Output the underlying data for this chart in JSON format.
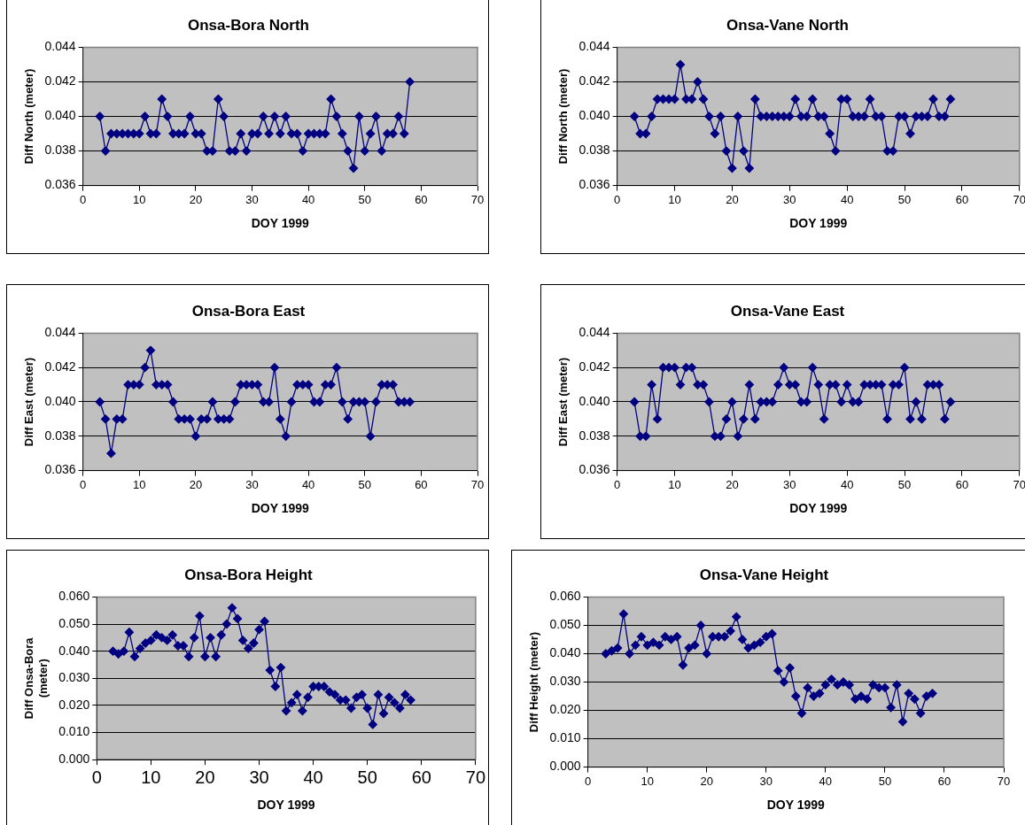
{
  "chart_data": [
    {
      "type": "line",
      "title": "Onsa-Bora North",
      "xlabel": "DOY 1999",
      "ylabel": "Diff North (meter)",
      "color": "#000080",
      "marker": "diamond",
      "grid": "y",
      "xlim": [
        0,
        70
      ],
      "xticks": [
        0,
        10,
        20,
        30,
        40,
        50,
        60,
        70
      ],
      "ylim": [
        0.036,
        0.044
      ],
      "yticks": [
        {
          "value": 0.036,
          "label": "0.036"
        },
        {
          "value": 0.038,
          "label": "0.038"
        },
        {
          "value": 0.04,
          "label": "0.040"
        },
        {
          "value": 0.042,
          "label": "0.042"
        },
        {
          "value": 0.044,
          "label": "0.044"
        }
      ],
      "x": [
        3,
        4,
        5,
        6,
        7,
        8,
        9,
        10,
        11,
        12,
        13,
        14,
        15,
        16,
        17,
        18,
        19,
        20,
        21,
        22,
        23,
        24,
        25,
        26,
        27,
        28,
        29,
        30,
        31,
        32,
        33,
        34,
        35,
        36,
        37,
        38,
        39,
        40,
        41,
        42,
        43,
        44,
        45,
        46,
        47,
        48,
        49,
        50,
        51,
        52,
        53,
        54,
        55,
        56,
        57,
        58
      ],
      "values": [
        0.04,
        0.038,
        0.039,
        0.039,
        0.039,
        0.039,
        0.039,
        0.039,
        0.04,
        0.039,
        0.039,
        0.041,
        0.04,
        0.039,
        0.039,
        0.039,
        0.04,
        0.039,
        0.039,
        0.038,
        0.038,
        0.041,
        0.04,
        0.038,
        0.038,
        0.039,
        0.038,
        0.039,
        0.039,
        0.04,
        0.039,
        0.04,
        0.039,
        0.04,
        0.039,
        0.039,
        0.038,
        0.039,
        0.039,
        0.039,
        0.039,
        0.041,
        0.04,
        0.039,
        0.038,
        0.037,
        0.04,
        0.038,
        0.039,
        0.04,
        0.038,
        0.039,
        0.039,
        0.04,
        0.039,
        0.042
      ]
    },
    {
      "type": "line",
      "title": "Onsa-Vane North",
      "xlabel": "DOY 1999",
      "ylabel": "Diff North (meter)",
      "color": "#000080",
      "marker": "diamond",
      "grid": "y",
      "xlim": [
        0,
        70
      ],
      "xticks": [
        0,
        10,
        20,
        30,
        40,
        50,
        60,
        70
      ],
      "ylim": [
        0.036,
        0.044
      ],
      "yticks": [
        {
          "value": 0.036,
          "label": "0.036"
        },
        {
          "value": 0.038,
          "label": "0.038"
        },
        {
          "value": 0.04,
          "label": "0.040"
        },
        {
          "value": 0.042,
          "label": "0.042"
        },
        {
          "value": 0.044,
          "label": "0.044"
        }
      ],
      "x": [
        3,
        4,
        5,
        6,
        7,
        8,
        9,
        10,
        11,
        12,
        13,
        14,
        15,
        16,
        17,
        18,
        19,
        20,
        21,
        22,
        23,
        24,
        25,
        26,
        27,
        28,
        29,
        30,
        31,
        32,
        33,
        34,
        35,
        36,
        37,
        38,
        39,
        40,
        41,
        42,
        43,
        44,
        45,
        46,
        47,
        48,
        49,
        50,
        51,
        52,
        53,
        54,
        55,
        56,
        57,
        58
      ],
      "values": [
        0.04,
        0.039,
        0.039,
        0.04,
        0.041,
        0.041,
        0.041,
        0.041,
        0.043,
        0.041,
        0.041,
        0.042,
        0.041,
        0.04,
        0.039,
        0.04,
        0.038,
        0.037,
        0.04,
        0.038,
        0.037,
        0.041,
        0.04,
        0.04,
        0.04,
        0.04,
        0.04,
        0.04,
        0.041,
        0.04,
        0.04,
        0.041,
        0.04,
        0.04,
        0.039,
        0.038,
        0.041,
        0.041,
        0.04,
        0.04,
        0.04,
        0.041,
        0.04,
        0.04,
        0.038,
        0.038,
        0.04,
        0.04,
        0.039,
        0.04,
        0.04,
        0.04,
        0.041,
        0.04,
        0.04,
        0.041
      ]
    },
    {
      "type": "line",
      "title": "Onsa-Bora East",
      "xlabel": "DOY 1999",
      "ylabel": "Diff East (meter)",
      "color": "#000080",
      "marker": "diamond",
      "grid": "y",
      "xlim": [
        0,
        70
      ],
      "xticks": [
        0,
        10,
        20,
        30,
        40,
        50,
        60,
        70
      ],
      "ylim": [
        0.036,
        0.044
      ],
      "yticks": [
        {
          "value": 0.036,
          "label": "0.036"
        },
        {
          "value": 0.038,
          "label": "0.038"
        },
        {
          "value": 0.04,
          "label": "0.040"
        },
        {
          "value": 0.042,
          "label": "0.042"
        },
        {
          "value": 0.044,
          "label": "0.044"
        }
      ],
      "x": [
        3,
        4,
        5,
        6,
        7,
        8,
        9,
        10,
        11,
        12,
        13,
        14,
        15,
        16,
        17,
        18,
        19,
        20,
        21,
        22,
        23,
        24,
        25,
        26,
        27,
        28,
        29,
        30,
        31,
        32,
        33,
        34,
        35,
        36,
        37,
        38,
        39,
        40,
        41,
        42,
        43,
        44,
        45,
        46,
        47,
        48,
        49,
        50,
        51,
        52,
        53,
        54,
        55,
        56,
        57,
        58
      ],
      "values": [
        0.04,
        0.039,
        0.037,
        0.039,
        0.039,
        0.041,
        0.041,
        0.041,
        0.042,
        0.043,
        0.041,
        0.041,
        0.041,
        0.04,
        0.039,
        0.039,
        0.039,
        0.038,
        0.039,
        0.039,
        0.04,
        0.039,
        0.039,
        0.039,
        0.04,
        0.041,
        0.041,
        0.041,
        0.041,
        0.04,
        0.04,
        0.042,
        0.039,
        0.038,
        0.04,
        0.041,
        0.041,
        0.041,
        0.04,
        0.04,
        0.041,
        0.041,
        0.042,
        0.04,
        0.039,
        0.04,
        0.04,
        0.04,
        0.038,
        0.04,
        0.041,
        0.041,
        0.041,
        0.04,
        0.04,
        0.04
      ]
    },
    {
      "type": "line",
      "title": "Onsa-Vane East",
      "xlabel": "DOY 1999",
      "ylabel": "Diff East (meter)",
      "color": "#000080",
      "marker": "diamond",
      "grid": "y",
      "xlim": [
        0,
        70
      ],
      "xticks": [
        0,
        10,
        20,
        30,
        40,
        50,
        60,
        70
      ],
      "ylim": [
        0.036,
        0.044
      ],
      "yticks": [
        {
          "value": 0.036,
          "label": "0.036"
        },
        {
          "value": 0.038,
          "label": "0.038"
        },
        {
          "value": 0.04,
          "label": "0.040"
        },
        {
          "value": 0.042,
          "label": "0.042"
        },
        {
          "value": 0.044,
          "label": "0.044"
        }
      ],
      "x": [
        3,
        4,
        5,
        6,
        7,
        8,
        9,
        10,
        11,
        12,
        13,
        14,
        15,
        16,
        17,
        18,
        19,
        20,
        21,
        22,
        23,
        24,
        25,
        26,
        27,
        28,
        29,
        30,
        31,
        32,
        33,
        34,
        35,
        36,
        37,
        38,
        39,
        40,
        41,
        42,
        43,
        44,
        45,
        46,
        47,
        48,
        49,
        50,
        51,
        52,
        53,
        54,
        55,
        56,
        57,
        58
      ],
      "values": [
        0.04,
        0.038,
        0.038,
        0.041,
        0.039,
        0.042,
        0.042,
        0.042,
        0.041,
        0.042,
        0.042,
        0.041,
        0.041,
        0.04,
        0.038,
        0.038,
        0.039,
        0.04,
        0.038,
        0.039,
        0.041,
        0.039,
        0.04,
        0.04,
        0.04,
        0.041,
        0.042,
        0.041,
        0.041,
        0.04,
        0.04,
        0.042,
        0.041,
        0.039,
        0.041,
        0.041,
        0.04,
        0.041,
        0.04,
        0.04,
        0.041,
        0.041,
        0.041,
        0.041,
        0.039,
        0.041,
        0.041,
        0.042,
        0.039,
        0.04,
        0.039,
        0.041,
        0.041,
        0.041,
        0.039,
        0.04
      ]
    },
    {
      "type": "line",
      "title": "Onsa-Bora Height",
      "xlabel": "DOY 1999",
      "ylabel": "Diff Onsa-Bora (meter)",
      "color": "#000080",
      "marker": "diamond",
      "grid": "y",
      "xlim": [
        0,
        70
      ],
      "xticks": [
        0,
        10,
        20,
        30,
        40,
        50,
        60,
        70
      ],
      "ylim": [
        0,
        0.06
      ],
      "yticks": [
        {
          "value": 0,
          "label": "0.000"
        },
        {
          "value": 0.01,
          "label": "0.010"
        },
        {
          "value": 0.02,
          "label": "0.020"
        },
        {
          "value": 0.03,
          "label": "0.030"
        },
        {
          "value": 0.04,
          "label": "0.040"
        },
        {
          "value": 0.05,
          "label": "0.050"
        },
        {
          "value": 0.06,
          "label": "0.060"
        }
      ],
      "x": [
        3,
        4,
        5,
        6,
        7,
        8,
        9,
        10,
        11,
        12,
        13,
        14,
        15,
        16,
        17,
        18,
        19,
        20,
        21,
        22,
        23,
        24,
        25,
        26,
        27,
        28,
        29,
        30,
        31,
        32,
        33,
        34,
        35,
        36,
        37,
        38,
        39,
        40,
        41,
        42,
        43,
        44,
        45,
        46,
        47,
        48,
        49,
        50,
        51,
        52,
        53,
        54,
        55,
        56,
        57,
        58
      ],
      "values": [
        0.04,
        0.039,
        0.04,
        0.047,
        0.038,
        0.041,
        0.043,
        0.044,
        0.046,
        0.045,
        0.044,
        0.046,
        0.042,
        0.042,
        0.038,
        0.045,
        0.053,
        0.038,
        0.045,
        0.038,
        0.046,
        0.05,
        0.056,
        0.052,
        0.044,
        0.041,
        0.043,
        0.048,
        0.051,
        0.033,
        0.027,
        0.034,
        0.018,
        0.021,
        0.024,
        0.018,
        0.023,
        0.027,
        0.027,
        0.027,
        0.025,
        0.024,
        0.022,
        0.022,
        0.019,
        0.023,
        0.024,
        0.019,
        0.013,
        0.024,
        0.017,
        0.023,
        0.021,
        0.019,
        0.024,
        0.022
      ]
    },
    {
      "type": "line",
      "title": "Onsa-Vane Height",
      "xlabel": "DOY 1999",
      "ylabel": "Diff Height (meter)",
      "color": "#000080",
      "marker": "diamond",
      "grid": "y",
      "xlim": [
        0,
        70
      ],
      "xticks": [
        0,
        10,
        20,
        30,
        40,
        50,
        60,
        70
      ],
      "ylim": [
        0,
        0.06
      ],
      "yticks": [
        {
          "value": 0,
          "label": "0.000"
        },
        {
          "value": 0.01,
          "label": "0.010"
        },
        {
          "value": 0.02,
          "label": "0.020"
        },
        {
          "value": 0.03,
          "label": "0.030"
        },
        {
          "value": 0.04,
          "label": "0.040"
        },
        {
          "value": 0.05,
          "label": "0.050"
        },
        {
          "value": 0.06,
          "label": "0.060"
        }
      ],
      "x": [
        3,
        4,
        5,
        6,
        7,
        8,
        9,
        10,
        11,
        12,
        13,
        14,
        15,
        16,
        17,
        18,
        19,
        20,
        21,
        22,
        23,
        24,
        25,
        26,
        27,
        28,
        29,
        30,
        31,
        32,
        33,
        34,
        35,
        36,
        37,
        38,
        39,
        40,
        41,
        42,
        43,
        44,
        45,
        46,
        47,
        48,
        49,
        50,
        51,
        52,
        53,
        54,
        55,
        56,
        57,
        58
      ],
      "values": [
        0.04,
        0.041,
        0.042,
        0.054,
        0.04,
        0.043,
        0.046,
        0.043,
        0.044,
        0.043,
        0.046,
        0.045,
        0.046,
        0.036,
        0.042,
        0.043,
        0.05,
        0.04,
        0.046,
        0.046,
        0.046,
        0.048,
        0.053,
        0.045,
        0.042,
        0.043,
        0.044,
        0.046,
        0.047,
        0.034,
        0.03,
        0.035,
        0.025,
        0.019,
        0.028,
        0.025,
        0.026,
        0.029,
        0.031,
        0.029,
        0.03,
        0.029,
        0.024,
        0.025,
        0.024,
        0.029,
        0.028,
        0.028,
        0.021,
        0.029,
        0.016,
        0.026,
        0.024,
        0.019,
        0.025,
        0.026
      ]
    }
  ]
}
